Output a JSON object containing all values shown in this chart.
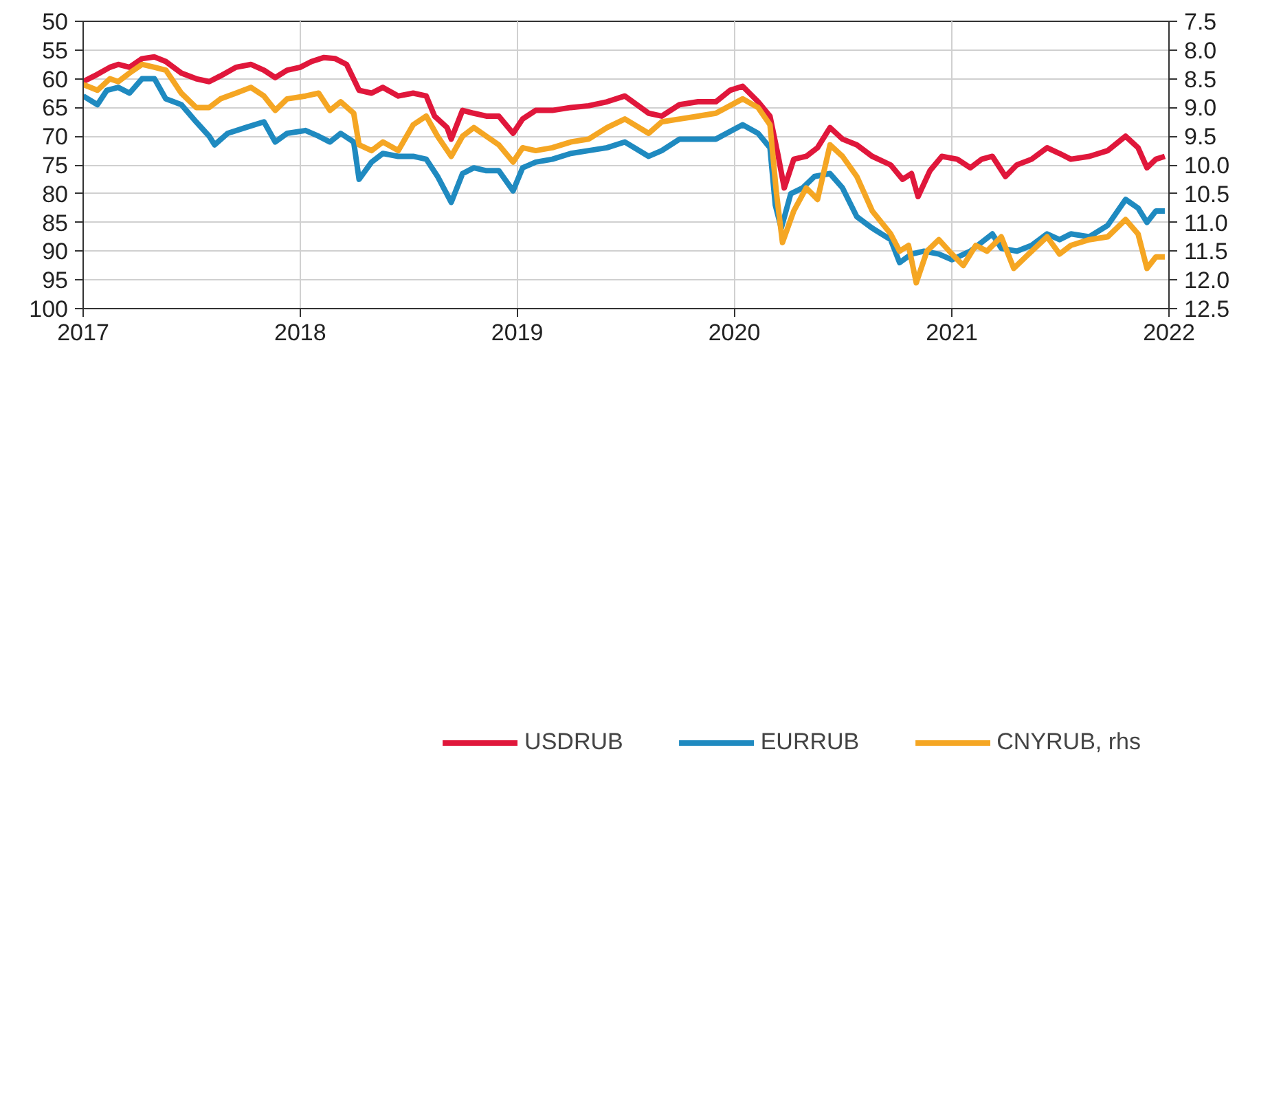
{
  "chart_data": {
    "type": "line",
    "xlim": [
      "2017",
      "2022"
    ],
    "xticks": [
      "2017",
      "2018",
      "2019",
      "2020",
      "2021",
      "2022"
    ],
    "ylim": [
      100,
      50
    ],
    "yticks": [
      50,
      55,
      60,
      65,
      70,
      75,
      80,
      85,
      90,
      95,
      100
    ],
    "y2lim": [
      12.5,
      7.5
    ],
    "y2ticks": [
      {
        "value": 7.5,
        "label": "7.5"
      },
      {
        "value": 8,
        "label": "8.0"
      },
      {
        "value": 8.5,
        "label": "8.5"
      },
      {
        "value": 9,
        "label": "9.0"
      },
      {
        "value": 9.5,
        "label": "9.5"
      },
      {
        "value": 10,
        "label": "10.0"
      },
      {
        "value": 10.5,
        "label": "10.5"
      },
      {
        "value": 11,
        "label": "11.0"
      },
      {
        "value": 11.5,
        "label": "11.5"
      },
      {
        "value": 12,
        "label": "12.0"
      },
      {
        "value": 12.5,
        "label": "12.5"
      }
    ],
    "grid": true,
    "legend": "bottom",
    "marker": "none",
    "line_style": "solid",
    "series": [
      {
        "name": "USDRUB",
        "color": "#e0173b",
        "x": [
          "2017-01-01",
          "2017-01-20",
          "2017-02-15",
          "2017-03-01",
          "2017-03-20",
          "2017-04-10",
          "2017-05-01",
          "2017-05-20",
          "2017-06-15",
          "2017-07-10",
          "2017-08-01",
          "2017-08-20",
          "2017-09-15",
          "2017-10-10",
          "2017-11-01",
          "2017-11-20",
          "2017-12-10",
          "2018-01-01",
          "2018-01-20",
          "2018-02-10",
          "2018-03-01",
          "2018-03-20",
          "2018-04-10",
          "2018-05-01",
          "2018-05-20",
          "2018-06-15",
          "2018-07-10",
          "2018-08-01",
          "2018-08-15",
          "2018-09-05",
          "2018-09-12",
          "2018-10-01",
          "2018-10-20",
          "2018-11-10",
          "2018-12-01",
          "2018-12-25",
          "2019-01-10",
          "2019-02-01",
          "2019-03-01",
          "2019-04-01",
          "2019-05-01",
          "2019-06-01",
          "2019-07-01",
          "2019-08-10",
          "2019-09-01",
          "2019-10-01",
          "2019-11-01",
          "2019-12-01",
          "2019-12-25",
          "2020-01-15",
          "2020-02-10",
          "2020-03-01",
          "2020-03-15",
          "2020-03-25",
          "2020-04-10",
          "2020-05-01",
          "2020-05-20",
          "2020-06-10",
          "2020-07-01",
          "2020-07-25",
          "2020-08-20",
          "2020-09-20",
          "2020-10-10",
          "2020-10-25",
          "2020-11-05",
          "2020-11-25",
          "2020-12-15",
          "2021-01-10",
          "2021-02-01",
          "2021-02-20",
          "2021-03-10",
          "2021-04-01",
          "2021-04-20",
          "2021-05-15",
          "2021-06-10",
          "2021-07-01",
          "2021-07-20",
          "2021-08-20",
          "2021-09-20",
          "2021-10-20",
          "2021-11-10",
          "2021-11-25",
          "2021-12-10",
          "2021-12-25"
        ],
        "values": [
          60.5,
          59.5,
          58,
          57.5,
          58,
          56.5,
          56.2,
          57,
          59,
          60,
          60.5,
          59.5,
          58,
          57.5,
          58.5,
          59.8,
          58.5,
          58,
          57,
          56.3,
          56.5,
          57.5,
          62,
          62.5,
          61.5,
          63,
          62.5,
          63,
          66.5,
          68.5,
          70.5,
          65.5,
          66,
          66.5,
          66.5,
          69.5,
          67,
          65.5,
          65.5,
          65,
          64.7,
          64,
          63,
          66,
          66.5,
          64.5,
          64,
          64,
          62,
          61.3,
          64,
          66.5,
          73.5,
          79,
          74,
          73.5,
          72,
          68.5,
          70.5,
          71.5,
          73.5,
          75,
          77.5,
          76.5,
          80.5,
          76,
          73.5,
          74,
          75.5,
          74,
          73.5,
          77,
          75,
          74,
          72,
          73,
          74,
          73.5,
          72.5,
          70,
          72,
          75.5,
          74,
          73.5
        ]
      },
      {
        "name": "EURRUB",
        "color": "#1f8ac0",
        "x": [
          "2017-01-01",
          "2017-01-25",
          "2017-02-10",
          "2017-03-01",
          "2017-03-20",
          "2017-04-10",
          "2017-05-01",
          "2017-05-20",
          "2017-06-15",
          "2017-07-10",
          "2017-08-01",
          "2017-08-10",
          "2017-09-01",
          "2017-10-01",
          "2017-11-01",
          "2017-11-20",
          "2017-12-10",
          "2018-01-10",
          "2018-02-01",
          "2018-02-20",
          "2018-03-10",
          "2018-04-01",
          "2018-04-10",
          "2018-05-01",
          "2018-05-20",
          "2018-06-15",
          "2018-07-10",
          "2018-08-01",
          "2018-08-20",
          "2018-09-12",
          "2018-10-01",
          "2018-10-20",
          "2018-11-10",
          "2018-12-01",
          "2018-12-25",
          "2019-01-10",
          "2019-02-01",
          "2019-03-01",
          "2019-04-01",
          "2019-05-01",
          "2019-06-01",
          "2019-07-01",
          "2019-08-10",
          "2019-09-01",
          "2019-10-01",
          "2019-11-01",
          "2019-12-01",
          "2020-01-15",
          "2020-02-10",
          "2020-03-01",
          "2020-03-10",
          "2020-03-20",
          "2020-04-05",
          "2020-04-25",
          "2020-05-15",
          "2020-06-10",
          "2020-07-01",
          "2020-07-25",
          "2020-08-20",
          "2020-09-20",
          "2020-10-05",
          "2020-10-25",
          "2020-11-15",
          "2020-12-10",
          "2021-01-01",
          "2021-02-01",
          "2021-03-10",
          "2021-03-25",
          "2021-04-20",
          "2021-05-15",
          "2021-06-10",
          "2021-07-01",
          "2021-07-20",
          "2021-08-20",
          "2021-09-20",
          "2021-10-20",
          "2021-11-10",
          "2021-11-25",
          "2021-12-10",
          "2021-12-25"
        ],
        "values": [
          63,
          64.5,
          62,
          61.5,
          62.5,
          60,
          60,
          63.5,
          64.5,
          67.5,
          70,
          71.5,
          69.5,
          68.5,
          67.5,
          71,
          69.5,
          69,
          70,
          71,
          69.5,
          71,
          77.5,
          74.5,
          73,
          73.5,
          73.5,
          74,
          77,
          81.5,
          76.5,
          75.5,
          76,
          76,
          79.5,
          75.5,
          74.5,
          74,
          73,
          72.5,
          72,
          71,
          73.5,
          72.5,
          70.5,
          70.5,
          70.5,
          68,
          69.5,
          72,
          82,
          86,
          80,
          79,
          77,
          76.5,
          79,
          84,
          86,
          88,
          92,
          90.5,
          90,
          90.5,
          91.5,
          90,
          87,
          89.5,
          90,
          89,
          87,
          88,
          87,
          87.5,
          85.5,
          81,
          82.5,
          85,
          83,
          83
        ]
      },
      {
        "name": "CNYRUB, rhs",
        "color": "#f5a623",
        "axis": "y2",
        "x": [
          "2017-01-01",
          "2017-01-25",
          "2017-02-15",
          "2017-03-01",
          "2017-03-20",
          "2017-04-10",
          "2017-05-01",
          "2017-05-20",
          "2017-06-15",
          "2017-07-10",
          "2017-08-01",
          "2017-08-20",
          "2017-09-15",
          "2017-10-10",
          "2017-11-01",
          "2017-11-20",
          "2017-12-10",
          "2018-01-10",
          "2018-02-01",
          "2018-02-20",
          "2018-03-10",
          "2018-04-01",
          "2018-04-10",
          "2018-05-01",
          "2018-05-20",
          "2018-06-15",
          "2018-07-10",
          "2018-08-01",
          "2018-08-20",
          "2018-09-12",
          "2018-10-01",
          "2018-10-20",
          "2018-11-10",
          "2018-12-01",
          "2018-12-25",
          "2019-01-10",
          "2019-02-01",
          "2019-03-01",
          "2019-04-01",
          "2019-05-01",
          "2019-06-01",
          "2019-07-01",
          "2019-08-10",
          "2019-09-01",
          "2019-10-01",
          "2019-11-01",
          "2019-12-01",
          "2020-01-15",
          "2020-02-10",
          "2020-03-01",
          "2020-03-12",
          "2020-03-22",
          "2020-04-10",
          "2020-05-01",
          "2020-05-20",
          "2020-06-10",
          "2020-07-01",
          "2020-07-25",
          "2020-08-20",
          "2020-09-20",
          "2020-10-05",
          "2020-10-20",
          "2020-11-02",
          "2020-11-20",
          "2020-12-10",
          "2021-01-01",
          "2021-01-20",
          "2021-02-10",
          "2021-03-01",
          "2021-03-25",
          "2021-04-15",
          "2021-05-10",
          "2021-06-10",
          "2021-07-01",
          "2021-07-20",
          "2021-08-20",
          "2021-09-20",
          "2021-10-20",
          "2021-11-10",
          "2021-11-25",
          "2021-12-10",
          "2021-12-25"
        ],
        "values": [
          8.6,
          8.7,
          8.5,
          8.55,
          8.4,
          8.25,
          8.3,
          8.35,
          8.75,
          9.0,
          9.0,
          8.85,
          8.75,
          8.65,
          8.8,
          9.05,
          8.85,
          8.8,
          8.75,
          9.05,
          8.9,
          9.1,
          9.65,
          9.75,
          9.6,
          9.75,
          9.3,
          9.15,
          9.5,
          9.85,
          9.5,
          9.35,
          9.5,
          9.65,
          9.95,
          9.7,
          9.75,
          9.7,
          9.6,
          9.55,
          9.35,
          9.2,
          9.45,
          9.25,
          9.2,
          9.15,
          9.1,
          8.85,
          9.0,
          9.3,
          10.5,
          11.35,
          10.8,
          10.4,
          10.6,
          9.65,
          9.85,
          10.2,
          10.8,
          11.2,
          11.5,
          11.4,
          12.05,
          11.5,
          11.3,
          11.55,
          11.75,
          11.4,
          11.5,
          11.25,
          11.8,
          11.55,
          11.25,
          11.55,
          11.4,
          11.3,
          11.25,
          10.95,
          11.2,
          11.8,
          11.6,
          11.6
        ]
      }
    ]
  }
}
